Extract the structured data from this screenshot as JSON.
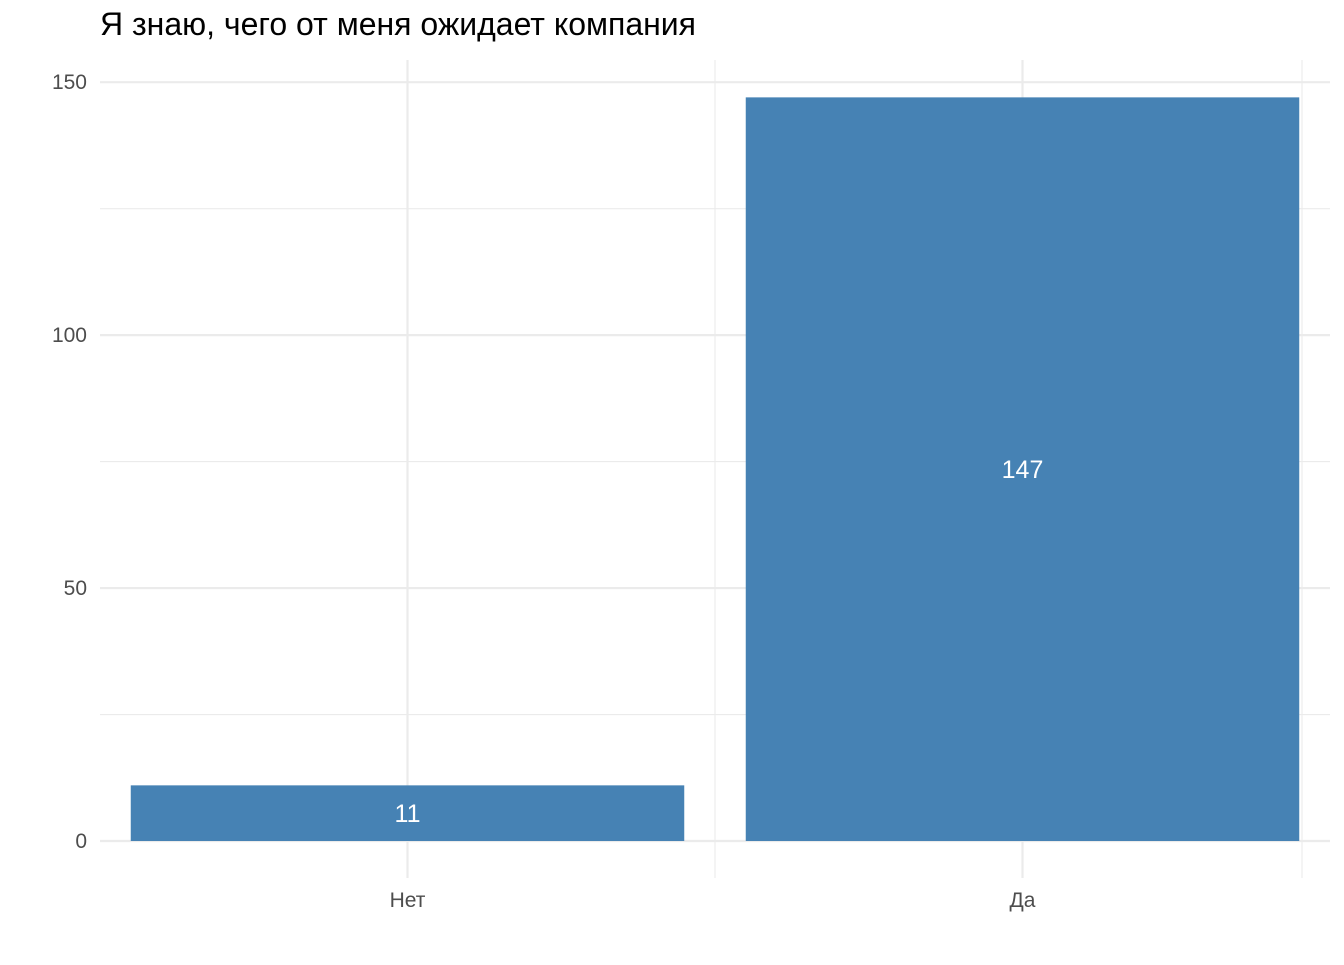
{
  "chart_data": {
    "type": "bar",
    "title": "Я знаю, чего от меня ожидает компания",
    "xlabel": "",
    "ylabel": "",
    "categories": [
      "Нет",
      "Да"
    ],
    "values": [
      11,
      147
    ],
    "data_labels": [
      "11",
      "147"
    ],
    "ylim": [
      0,
      150
    ],
    "y_ticks": [
      0,
      50,
      100,
      150
    ],
    "y_tick_labels": [
      "0",
      "50",
      "100",
      "150"
    ],
    "grid": true,
    "bar_color": "#4682b4",
    "data_label_color": "#ffffff",
    "gridline_color": "#ebebeb",
    "axis_text_color": "#4d4d4d"
  }
}
